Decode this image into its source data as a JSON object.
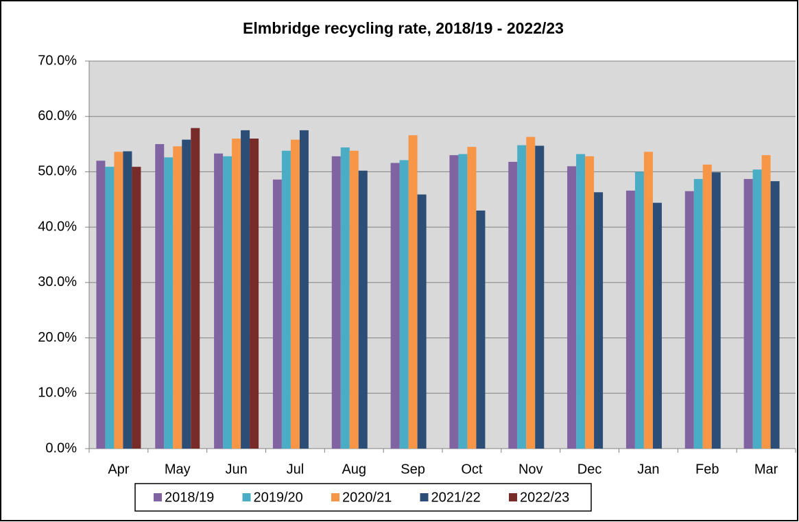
{
  "chart_data": {
    "type": "bar",
    "title": "Elmbridge recycling rate, 2018/19 - 2022/23",
    "categories": [
      "Apr",
      "May",
      "Jun",
      "Jul",
      "Aug",
      "Sep",
      "Oct",
      "Nov",
      "Dec",
      "Jan",
      "Feb",
      "Mar"
    ],
    "series": [
      {
        "name": "2018/19",
        "color": "#8064a2",
        "values": [
          52.0,
          55.0,
          53.3,
          48.6,
          52.8,
          51.6,
          53.0,
          51.8,
          51.0,
          46.6,
          46.5,
          48.7
        ]
      },
      {
        "name": "2019/20",
        "color": "#4bacc6",
        "values": [
          50.9,
          52.6,
          52.8,
          53.8,
          54.4,
          52.1,
          53.2,
          54.8,
          53.2,
          50.0,
          48.7,
          50.4
        ]
      },
      {
        "name": "2020/21",
        "color": "#f79646",
        "values": [
          53.6,
          54.6,
          56.0,
          55.8,
          53.8,
          56.6,
          54.5,
          56.3,
          52.8,
          53.6,
          51.3,
          53.0
        ]
      },
      {
        "name": "2021/22",
        "color": "#2c4d75",
        "values": [
          53.7,
          55.8,
          57.5,
          57.5,
          50.2,
          45.9,
          43.0,
          54.7,
          46.3,
          44.4,
          49.9,
          48.3
        ]
      },
      {
        "name": "2022/23",
        "color": "#772c2a",
        "values": [
          50.9,
          57.9,
          56.0,
          null,
          null,
          null,
          null,
          null,
          null,
          null,
          null,
          null
        ]
      }
    ],
    "ylim": [
      0,
      70
    ],
    "yticks": [
      {
        "value": 0,
        "label": "0.0%"
      },
      {
        "value": 10,
        "label": "10.0%"
      },
      {
        "value": 20,
        "label": "20.0%"
      },
      {
        "value": 30,
        "label": "30.0%"
      },
      {
        "value": 40,
        "label": "40.0%"
      },
      {
        "value": 50,
        "label": "50.0%"
      },
      {
        "value": 60,
        "label": "60.0%"
      },
      {
        "value": 70,
        "label": "70.0%"
      }
    ],
    "grid": true,
    "legend": "bottom"
  }
}
